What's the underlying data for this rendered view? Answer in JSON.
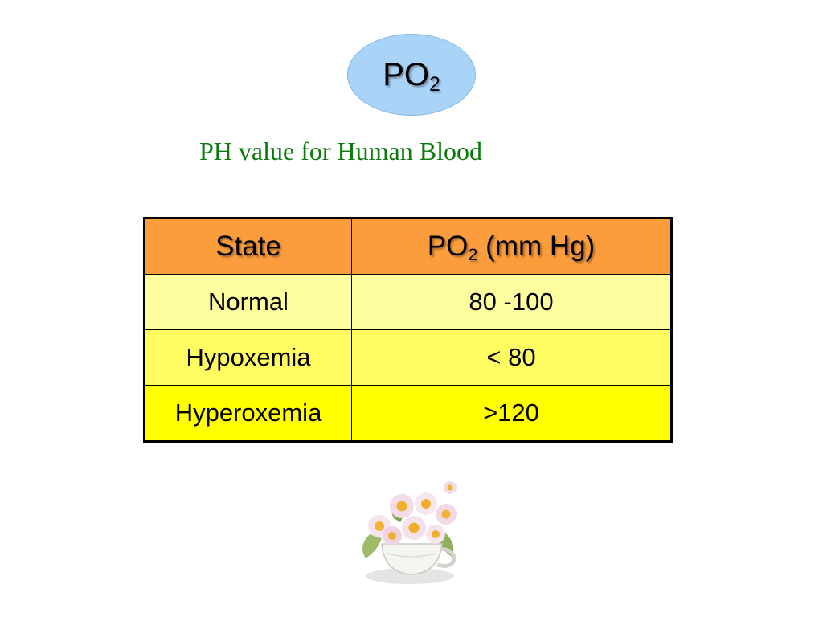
{
  "slide": {
    "title": {
      "base": "PO",
      "subscript": "2"
    },
    "subtitle": "PH value for Human Blood"
  },
  "table": {
    "headers": {
      "state": "State",
      "po2_base": "PO",
      "po2_subscript": "2",
      "po2_unit": " (mm Hg)"
    },
    "rows": [
      {
        "state": "Normal",
        "value": "80 -100"
      },
      {
        "state": "Hypoxemia",
        "value": "< 80"
      },
      {
        "state": "Hyperoxemia",
        "value": ">120"
      }
    ]
  },
  "colors": {
    "title_oval": "#a9d3f7",
    "subtitle_text": "#0b7a0b",
    "header_bg": "#fb9d3c",
    "row_normal_bg": "#fffe9e",
    "row_hypoxemia_bg": "#fffd62",
    "row_hyperoxemia_bg": "#ffff00"
  },
  "decoration": {
    "image": "flower-bouquet-teacup"
  }
}
